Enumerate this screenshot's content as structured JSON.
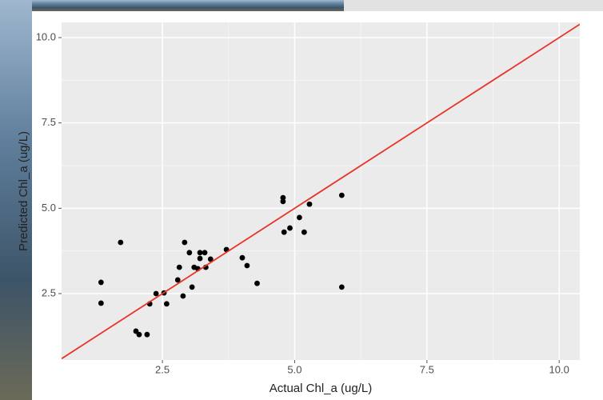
{
  "chart_data": {
    "type": "scatter",
    "x_label": "Actual Chl_a (ug/L)",
    "y_label": "Predicted Chl_a (ug/L)",
    "xlim": [
      0.594,
      10.39
    ],
    "ylim": [
      0.555,
      10.445
    ],
    "xticks": [
      2.5,
      {
        "value": 5,
        "label": "5.0"
      },
      7.5,
      {
        "value": 10,
        "label": "10.0"
      }
    ],
    "yticks": [
      2.5,
      {
        "value": 5,
        "label": "5.0"
      },
      7.5,
      {
        "value": 10,
        "label": "10.0"
      }
    ],
    "grid": true,
    "series": [
      {
        "color": "#000000",
        "x": [
          1.34,
          1.34,
          1.71,
          2.0,
          2.06,
          2.21,
          2.26,
          2.38,
          2.53,
          2.58,
          2.79,
          2.82,
          2.89,
          2.92,
          3.01,
          3.06,
          3.1,
          3.17,
          3.21,
          3.21,
          3.3,
          3.32,
          3.41,
          3.71,
          4.01,
          4.1,
          4.29,
          4.78,
          4.78,
          4.8,
          4.91,
          5.09,
          5.18,
          5.28,
          5.89,
          5.89
        ],
        "values": [
          2.83,
          2.22,
          4.0,
          1.4,
          1.3,
          1.3,
          2.2,
          2.5,
          2.52,
          2.2,
          2.9,
          3.27,
          2.43,
          4.0,
          3.7,
          2.69,
          3.27,
          3.23,
          3.7,
          3.53,
          3.7,
          3.27,
          3.51,
          3.79,
          3.55,
          3.32,
          2.8,
          5.31,
          5.2,
          4.3,
          4.42,
          4.73,
          4.3,
          5.12,
          5.38,
          2.69
        ]
      }
    ],
    "reference_line": {
      "slope": 1,
      "intercept": 0,
      "color": "#e8342a"
    }
  }
}
